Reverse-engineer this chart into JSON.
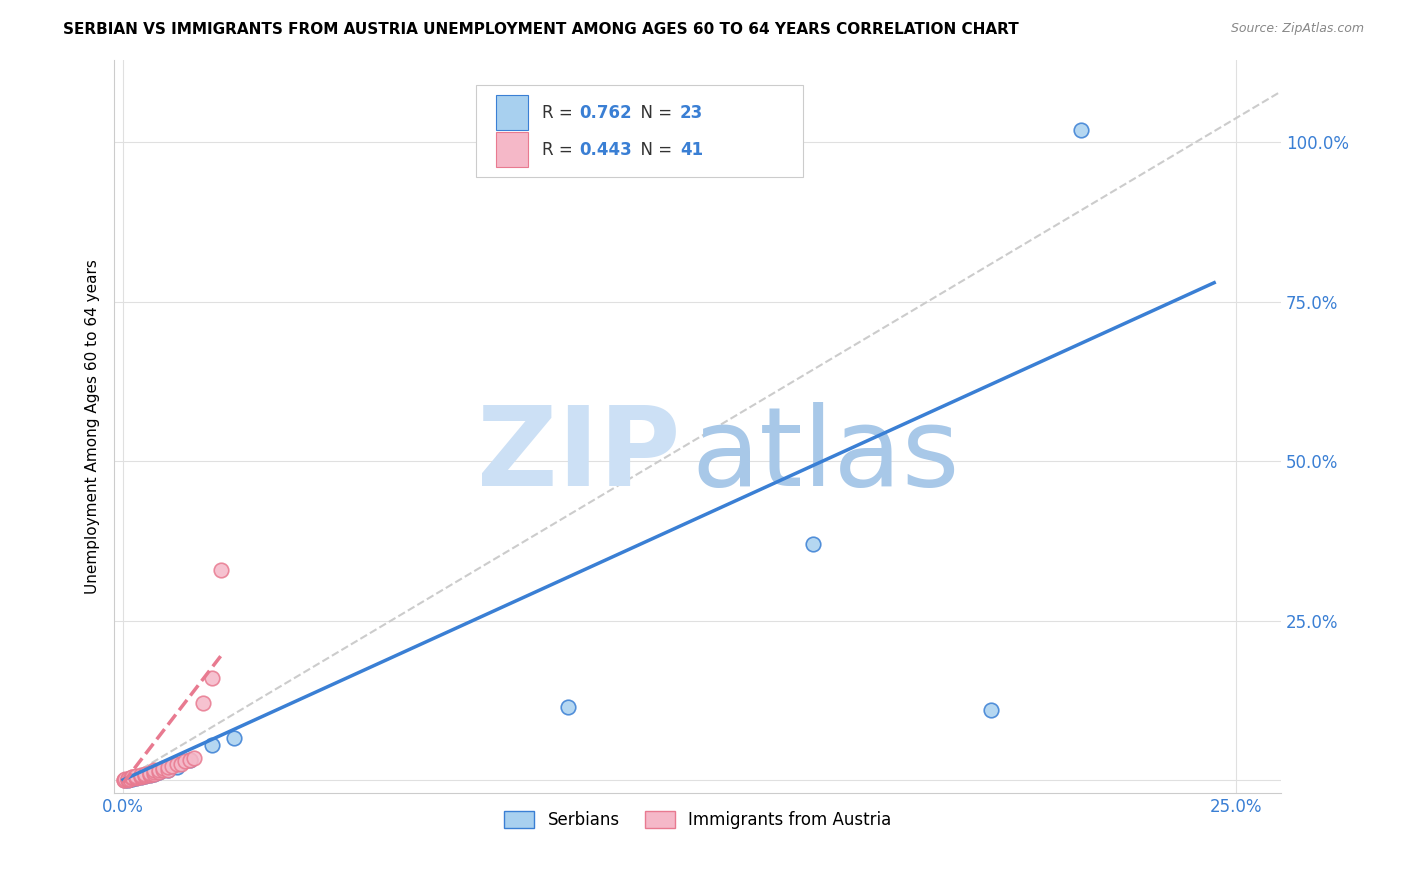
{
  "title": "SERBIAN VS IMMIGRANTS FROM AUSTRIA UNEMPLOYMENT AMONG AGES 60 TO 64 YEARS CORRELATION CHART",
  "source": "Source: ZipAtlas.com",
  "ylabel": "Unemployment Among Ages 60 to 64 years",
  "legend_label_1": "Serbians",
  "legend_label_2": "Immigrants from Austria",
  "R1": 0.762,
  "N1": 23,
  "R2": 0.443,
  "N2": 41,
  "xlim": [
    -0.002,
    0.26
  ],
  "ylim": [
    -0.02,
    1.13
  ],
  "xtick_positions": [
    0.0,
    0.25
  ],
  "xtick_labels": [
    "0.0%",
    "25.0%"
  ],
  "ytick_positions": [
    0.0,
    0.25,
    0.5,
    0.75,
    1.0
  ],
  "ytick_labels": [
    "",
    "25.0%",
    "50.0%",
    "75.0%",
    "100.0%"
  ],
  "color_serbian": "#a8d0ef",
  "color_austria": "#f5b8c8",
  "color_line_serbian": "#3a7fd4",
  "color_line_austria": "#e87a90",
  "color_grid": "#e0e0e0",
  "color_diag": "#cccccc",
  "serbian_x": [
    0.0005,
    0.001,
    0.001,
    0.0015,
    0.002,
    0.002,
    0.003,
    0.003,
    0.004,
    0.005,
    0.006,
    0.007,
    0.008,
    0.009,
    0.01,
    0.012,
    0.015,
    0.02,
    0.025,
    0.1,
    0.155,
    0.195,
    0.215
  ],
  "serbian_y": [
    0.0,
    0.0,
    0.001,
    0.001,
    0.002,
    0.003,
    0.003,
    0.004,
    0.005,
    0.006,
    0.007,
    0.01,
    0.012,
    0.015,
    0.015,
    0.02,
    0.032,
    0.055,
    0.065,
    0.115,
    0.37,
    0.11,
    1.02
  ],
  "austria_x": [
    0.0002,
    0.0003,
    0.0005,
    0.001,
    0.001,
    0.001,
    0.0015,
    0.002,
    0.002,
    0.002,
    0.003,
    0.003,
    0.003,
    0.003,
    0.004,
    0.004,
    0.004,
    0.005,
    0.005,
    0.005,
    0.006,
    0.006,
    0.006,
    0.007,
    0.007,
    0.007,
    0.008,
    0.008,
    0.009,
    0.009,
    0.01,
    0.01,
    0.011,
    0.012,
    0.013,
    0.014,
    0.015,
    0.016,
    0.018,
    0.02,
    0.022
  ],
  "austria_y": [
    0.0,
    0.0,
    0.001,
    0.0,
    0.001,
    0.002,
    0.002,
    0.003,
    0.004,
    0.005,
    0.003,
    0.004,
    0.005,
    0.006,
    0.005,
    0.006,
    0.008,
    0.006,
    0.007,
    0.009,
    0.007,
    0.009,
    0.011,
    0.01,
    0.012,
    0.015,
    0.012,
    0.016,
    0.015,
    0.018,
    0.015,
    0.02,
    0.022,
    0.025,
    0.025,
    0.03,
    0.032,
    0.035,
    0.12,
    0.16,
    0.33
  ],
  "blue_line_x": [
    0.0,
    0.245
  ],
  "blue_line_y": [
    0.0,
    0.78
  ],
  "pink_line_x": [
    0.0,
    0.022
  ],
  "pink_line_y": [
    -0.005,
    0.195
  ],
  "diag_line_x": [
    0.0,
    0.26
  ],
  "diag_line_y": [
    0.0,
    1.08
  ]
}
